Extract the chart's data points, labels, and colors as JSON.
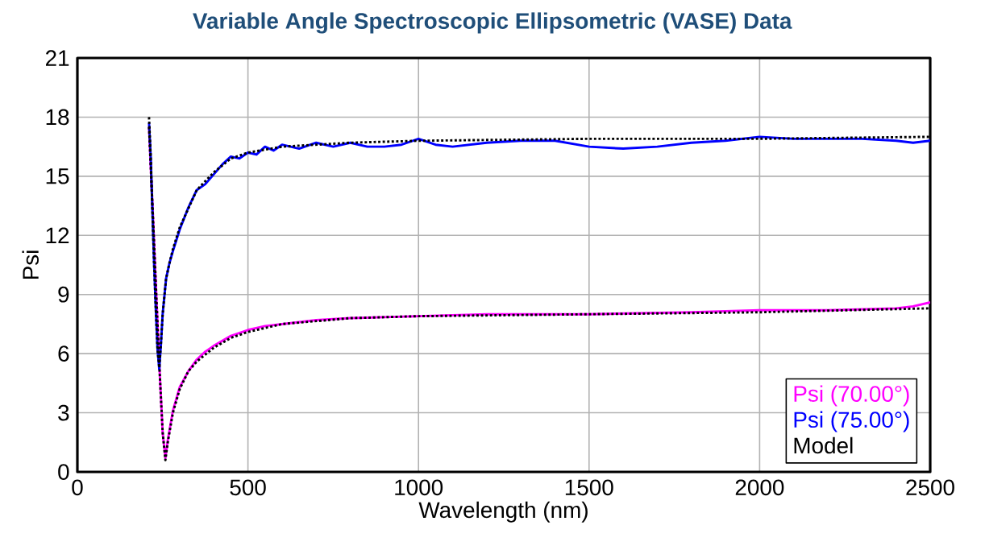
{
  "chart_data": {
    "type": "line",
    "title": "Variable Angle Spectroscopic Ellipsometric (VASE) Data",
    "xlabel": "Wavelength (nm)",
    "ylabel": "Psi",
    "xlim": [
      0,
      2500
    ],
    "ylim": [
      0,
      21
    ],
    "xticks": [
      0,
      500,
      1000,
      1500,
      2000,
      2500
    ],
    "yticks": [
      0,
      3,
      6,
      9,
      12,
      15,
      18,
      21
    ],
    "grid": true,
    "legend": "bottom right",
    "series": [
      {
        "name": "Psi (70.00°)",
        "color": "#ff00ff",
        "line_style": "solid",
        "x": [
          210,
          215,
          222,
          230,
          240,
          250,
          258,
          265,
          280,
          300,
          325,
          350,
          375,
          400,
          450,
          500,
          550,
          600,
          700,
          800,
          1000,
          1200,
          1500,
          1800,
          2000,
          2200,
          2400,
          2450,
          2500
        ],
        "values": [
          17.5,
          15.5,
          12.8,
          9.5,
          5.5,
          2.0,
          0.7,
          1.6,
          3.1,
          4.3,
          5.1,
          5.7,
          6.1,
          6.4,
          6.9,
          7.2,
          7.4,
          7.5,
          7.7,
          7.8,
          7.9,
          8.0,
          8.0,
          8.1,
          8.2,
          8.2,
          8.3,
          8.4,
          8.6
        ]
      },
      {
        "name": "Psi (75.00°)",
        "color": "#0000ff",
        "line_style": "solid",
        "x": [
          210,
          215,
          220,
          225,
          230,
          235,
          240,
          245,
          250,
          260,
          270,
          280,
          300,
          325,
          350,
          375,
          400,
          425,
          450,
          475,
          500,
          525,
          550,
          575,
          600,
          650,
          700,
          750,
          800,
          850,
          900,
          950,
          1000,
          1050,
          1100,
          1200,
          1300,
          1400,
          1500,
          1600,
          1700,
          1800,
          1900,
          2000,
          2100,
          2200,
          2300,
          2400,
          2450,
          2500
        ],
        "values": [
          17.7,
          16.0,
          13.2,
          10.5,
          8.2,
          6.2,
          5.2,
          6.5,
          8.0,
          9.8,
          10.6,
          11.2,
          12.3,
          13.4,
          14.3,
          14.6,
          15.1,
          15.6,
          16.0,
          15.9,
          16.2,
          16.1,
          16.5,
          16.3,
          16.6,
          16.4,
          16.7,
          16.5,
          16.7,
          16.5,
          16.5,
          16.6,
          16.9,
          16.6,
          16.5,
          16.7,
          16.8,
          16.8,
          16.5,
          16.4,
          16.5,
          16.7,
          16.8,
          17.0,
          16.9,
          16.9,
          16.9,
          16.8,
          16.7,
          16.8
        ]
      },
      {
        "name": "Model",
        "color": "#000000",
        "line_style": "dotted",
        "x": [
          210,
          215,
          220,
          225,
          230,
          235,
          240,
          245,
          250,
          260,
          270,
          280,
          300,
          350,
          400,
          450,
          500,
          600,
          700,
          800,
          1000,
          1500,
          2000,
          2500
        ],
        "values": [
          18.0,
          16.0,
          13.2,
          10.5,
          8.2,
          6.2,
          5.3,
          6.5,
          8.0,
          9.8,
          10.6,
          11.3,
          12.4,
          14.3,
          15.2,
          15.9,
          16.2,
          16.5,
          16.6,
          16.7,
          16.8,
          16.9,
          16.9,
          17.0
        ]
      },
      {
        "color": "#000000",
        "line_style": "dotted",
        "x": [
          210,
          215,
          222,
          230,
          240,
          250,
          258,
          265,
          280,
          300,
          325,
          350,
          400,
          450,
          500,
          600,
          800,
          1000,
          1500,
          2000,
          2500
        ],
        "values": [
          17.5,
          15.5,
          12.8,
          9.5,
          5.5,
          2.0,
          0.6,
          1.5,
          3.0,
          4.2,
          5.1,
          5.6,
          6.3,
          6.8,
          7.1,
          7.5,
          7.8,
          7.9,
          8.0,
          8.1,
          8.3
        ]
      }
    ]
  }
}
